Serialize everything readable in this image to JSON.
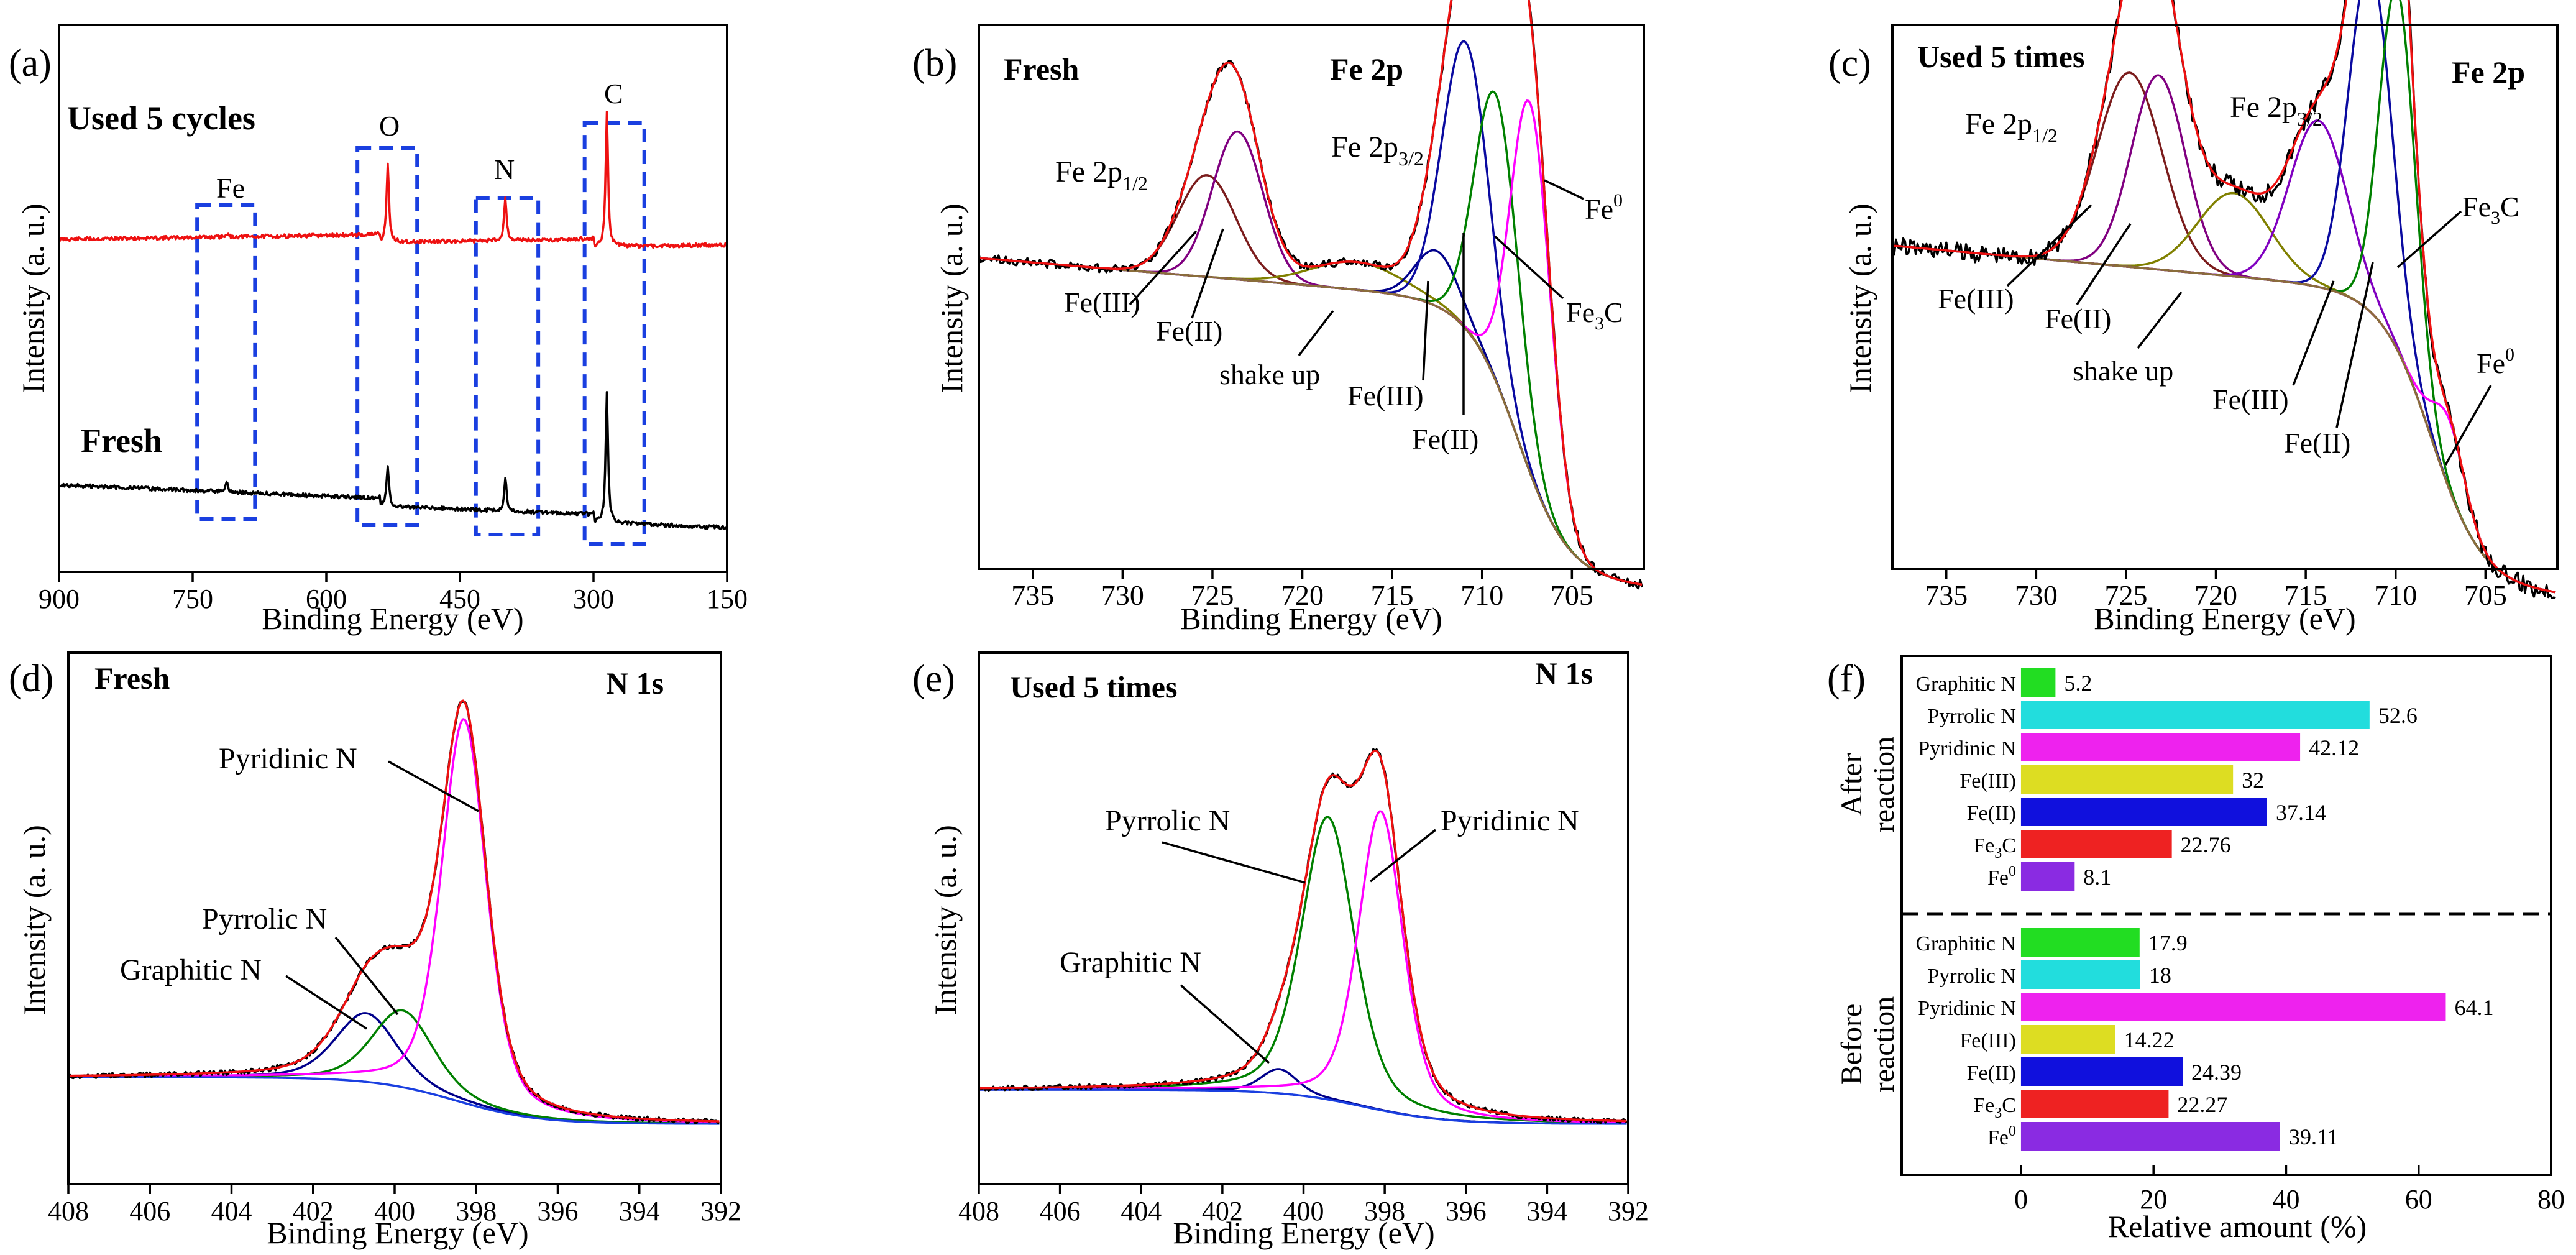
{
  "chart_data": [
    {
      "panel": "(a)",
      "type": "line",
      "xlabel": "Binding Energy (eV)",
      "ylabel": "Intensity (a. u.)",
      "xlim": [
        900,
        150
      ],
      "x_ticks": [
        900,
        750,
        600,
        450,
        300,
        150
      ],
      "series": [
        {
          "name": "Used 5 cycles",
          "color": "#ee1111",
          "peaks": [
            {
              "x": 712,
              "h": 0.15
            },
            {
              "x": 531,
              "h": 3.2
            },
            {
              "x": 399,
              "h": 1.8
            },
            {
              "x": 285,
              "h": 5.4
            }
          ]
        },
        {
          "name": "Fresh",
          "color": "#000000",
          "peaks": [
            {
              "x": 712,
              "h": 0.4
            },
            {
              "x": 531,
              "h": 1.6
            },
            {
              "x": 399,
              "h": 1.4
            },
            {
              "x": 285,
              "h": 5.2
            }
          ]
        }
      ],
      "boxes": [
        {
          "label": "Fe",
          "from": 745,
          "to": 680
        },
        {
          "label": "O",
          "from": 565,
          "to": 498
        },
        {
          "label": "N",
          "from": 432,
          "to": 362
        },
        {
          "label": "C",
          "from": 310,
          "to": 243
        }
      ]
    },
    {
      "panel": "(b)",
      "type": "line",
      "title": "Fresh",
      "element": "Fe 2p",
      "xlabel": "Binding Energy (eV)",
      "ylabel": "Intensity (a. u.)",
      "xlim": [
        738,
        701
      ],
      "x_ticks": [
        735,
        730,
        725,
        720,
        715,
        710,
        705
      ],
      "components": [
        {
          "name": "Fe(III) 2p1/2",
          "center": 725.3,
          "height": 0.22,
          "width": 1.6,
          "color": "#7b1c1c"
        },
        {
          "name": "Fe(II) 2p1/2",
          "center": 723.6,
          "height": 0.32,
          "width": 1.4,
          "color": "#800080"
        },
        {
          "name": "shake up",
          "center": 717.0,
          "height": 0.06,
          "width": 2.5,
          "color": "#808000"
        },
        {
          "name": "Fe(III) 2p3/2",
          "center": 712.5,
          "height": 0.12,
          "width": 1.2,
          "color": "#00008b"
        },
        {
          "name": "Fe(II) 2p3/2",
          "center": 710.9,
          "height": 0.62,
          "width": 1.3,
          "color": "#0a0aa0"
        },
        {
          "name": "Fe3C",
          "center": 709.2,
          "height": 0.62,
          "width": 1.2,
          "color": "#008000"
        },
        {
          "name": "Fe0",
          "center": 707.3,
          "height": 0.8,
          "width": 1.1,
          "color": "#ff00ff"
        }
      ]
    },
    {
      "panel": "(c)",
      "type": "line",
      "title": "Used 5 times",
      "element": "Fe 2p",
      "xlabel": "Binding Energy (eV)",
      "ylabel": "Intensity (a. u.)",
      "xlim": [
        738,
        701
      ],
      "x_ticks": [
        735,
        730,
        725,
        720,
        715,
        710,
        705
      ],
      "components": [
        {
          "name": "Fe(III) 2p1/2",
          "center": 724.8,
          "height": 0.42,
          "width": 1.8,
          "color": "#7b1c1c"
        },
        {
          "name": "Fe(II) 2p1/2",
          "center": 723.2,
          "height": 0.42,
          "width": 1.5,
          "color": "#800080"
        },
        {
          "name": "shake up",
          "center": 719.0,
          "height": 0.18,
          "width": 2.0,
          "color": "#808000"
        },
        {
          "name": "Fe(III) 2p3/2",
          "center": 714.3,
          "height": 0.36,
          "width": 1.6,
          "color": "#8000c0"
        },
        {
          "name": "Fe(II) 2p3/2",
          "center": 711.4,
          "height": 0.75,
          "width": 1.2,
          "color": "#0a0aa0"
        },
        {
          "name": "Fe3C",
          "center": 709.9,
          "height": 0.78,
          "width": 1.0,
          "color": "#008000"
        },
        {
          "name": "Fe0",
          "center": 707.0,
          "height": 0.15,
          "width": 0.9,
          "color": "#ff00ff"
        }
      ]
    },
    {
      "panel": "(d)",
      "type": "line",
      "title": "Fresh",
      "element": "N 1s",
      "xlabel": "Binding Energy (eV)",
      "ylabel": "Intensity (a. u.)",
      "xlim": [
        408,
        392
      ],
      "x_ticks": [
        408,
        406,
        404,
        402,
        400,
        398,
        396,
        394,
        392
      ],
      "components": [
        {
          "name": "Graphitic N",
          "center": 400.7,
          "height": 0.17,
          "width": 0.75,
          "color": "#00008b"
        },
        {
          "name": "Pyrrolic N",
          "center": 399.8,
          "height": 0.19,
          "width": 0.75,
          "color": "#008000"
        },
        {
          "name": "Pyridinic N",
          "center": 398.3,
          "height": 0.95,
          "width": 0.55,
          "color": "#ff00ff"
        }
      ]
    },
    {
      "panel": "(e)",
      "type": "line",
      "title": "Used 5 times",
      "element": "N 1s",
      "xlabel": "Binding Energy (eV)",
      "ylabel": "Intensity (a. u.)",
      "xlim": [
        408,
        392
      ],
      "x_ticks": [
        408,
        406,
        404,
        402,
        400,
        398,
        396,
        394,
        392
      ],
      "components": [
        {
          "name": "Graphitic N",
          "center": 400.6,
          "height": 0.06,
          "width": 0.45,
          "color": "#00008b"
        },
        {
          "name": "Pyrrolic N",
          "center": 399.4,
          "height": 0.7,
          "width": 0.65,
          "color": "#008000"
        },
        {
          "name": "Pyridinic N",
          "center": 398.1,
          "height": 0.74,
          "width": 0.55,
          "color": "#ff00ff"
        }
      ]
    },
    {
      "panel": "(f)",
      "type": "bar",
      "orientation": "horizontal",
      "xlabel": "Relative amount (%)",
      "xlim": [
        -18,
        80
      ],
      "x_ticks": [
        0,
        20,
        40,
        60,
        80
      ],
      "groups": [
        {
          "name": "After reaction",
          "categories": [
            "Graphitic N",
            "Pyrrolic N",
            "Pyridinic N",
            "Fe(III)",
            "Fe(II)",
            "Fe3C",
            "Fe0"
          ],
          "values": [
            5.2,
            52.6,
            42.12,
            32,
            37.14,
            22.76,
            8.1
          ]
        },
        {
          "name": "Before reaction",
          "categories": [
            "Graphitic N",
            "Pyrrolic N",
            "Pyridinic N",
            "Fe(III)",
            "Fe(II)",
            "Fe3C",
            "Fe0"
          ],
          "values": [
            17.9,
            18,
            64.1,
            14.22,
            24.39,
            22.27,
            39.11
          ]
        }
      ],
      "colors": [
        "#22dd22",
        "#22dddd",
        "#ee22ee",
        "#dddd22",
        "#1010dd",
        "#ee2222",
        "#8a2be2"
      ]
    }
  ],
  "labels": {
    "panel_a": "(a)",
    "panel_b": "(b)",
    "panel_c": "(c)",
    "panel_d": "(d)",
    "panel_e": "(e)",
    "panel_f": "(f)",
    "used_5_cycles": "Used 5 cycles",
    "fresh": "Fresh",
    "used_5_times": "Used 5 times",
    "fe": "Fe",
    "o": "O",
    "n": "N",
    "c": "C",
    "fe2p": "Fe 2p",
    "n1s": "N 1s",
    "fe2p_base": "Fe 2p",
    "sub_half": "1/2",
    "sub_three_half": "3/2",
    "fe_iii": "Fe(III)",
    "fe_ii": "Fe(II)",
    "shake_up": "shake up",
    "fe3c_base": "Fe",
    "sub_3": "3",
    "fe0_base": "Fe",
    "sup_0": "0",
    "pyridinic_n": "Pyridinic N",
    "pyrrolic_n": "Pyrrolic N",
    "graphitic_n": "Graphitic N",
    "after": "After",
    "reaction": "reaction",
    "before": "Before"
  }
}
